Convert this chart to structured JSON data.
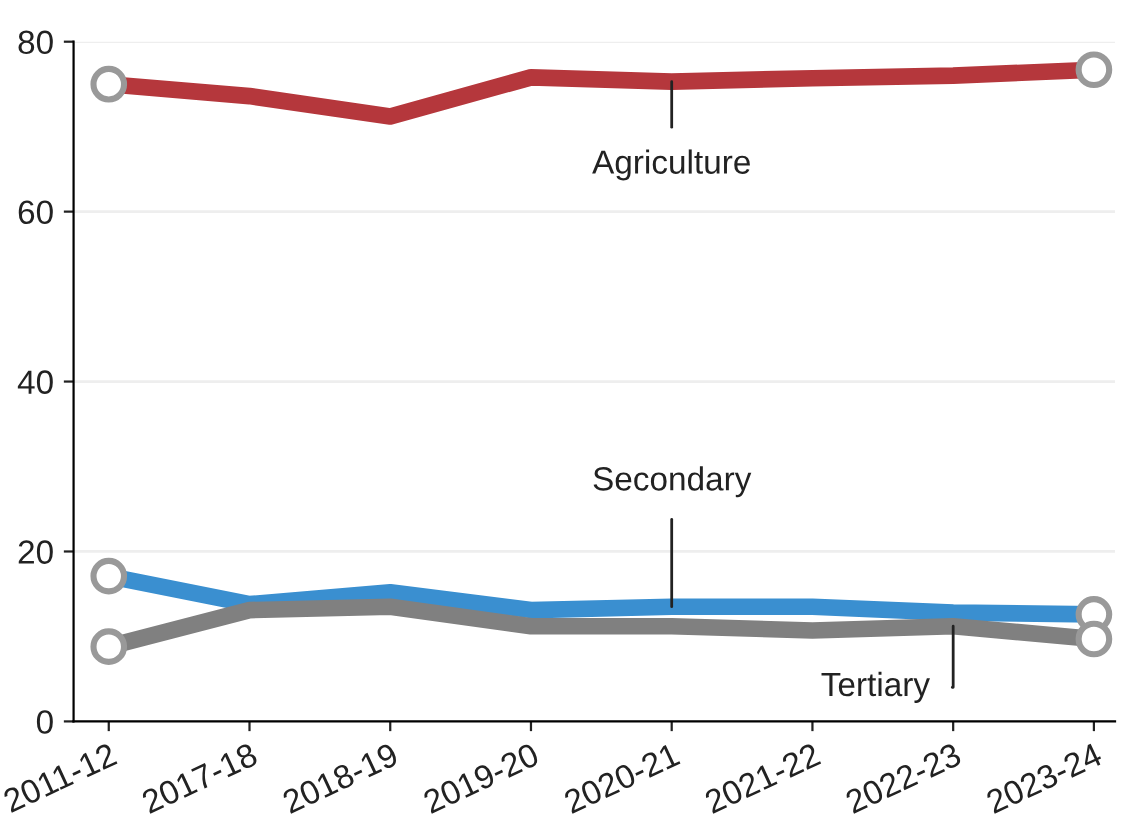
{
  "chart_data": {
    "type": "line",
    "categories": [
      "2011-12",
      "2017-18",
      "2018-19",
      "2019-20",
      "2020-21",
      "2021-22",
      "2022-23",
      "2023-24"
    ],
    "series": [
      {
        "name": "Agriculture",
        "color": "#b5373c",
        "values": [
          75.0,
          73.6,
          71.2,
          75.8,
          75.3,
          75.7,
          76.0,
          76.7
        ]
      },
      {
        "name": "Secondary",
        "color": "#3a8fd0",
        "values": [
          17.1,
          13.8,
          15.2,
          13.1,
          13.5,
          13.5,
          12.8,
          12.6
        ]
      },
      {
        "name": "Tertiary",
        "color": "#808080",
        "values": [
          8.8,
          13.1,
          13.5,
          11.2,
          11.2,
          10.7,
          11.2,
          9.7
        ]
      }
    ],
    "ylim": [
      0,
      80
    ],
    "yticks": [
      0,
      20,
      40,
      60,
      80
    ],
    "grid": "y",
    "legend": false,
    "line_style": "solid"
  }
}
